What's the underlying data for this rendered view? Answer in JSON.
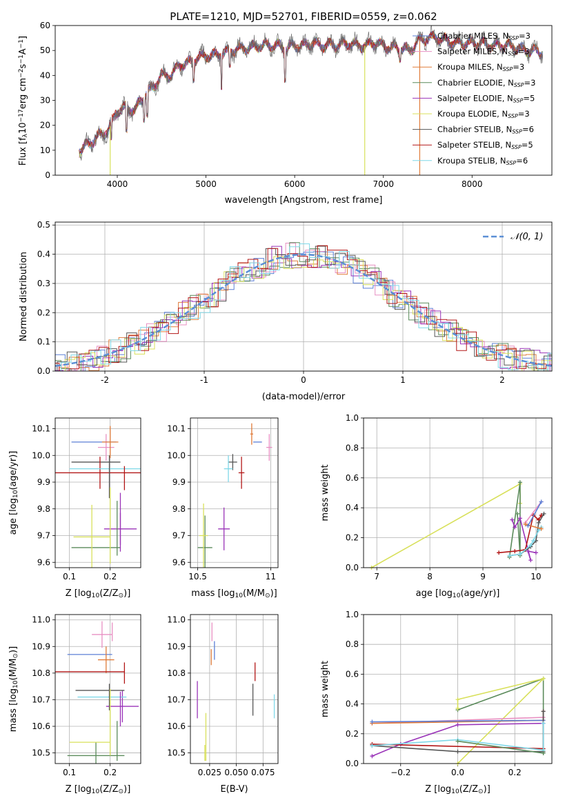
{
  "colors": {
    "chabrier_miles": "#5b7fd6",
    "salpeter_miles": "#e88fc2",
    "kroupa_miles": "#e07b39",
    "chabrier_elodie": "#5a8a5a",
    "salpeter_elodie": "#9a33b8",
    "kroupa_elodie": "#d8e05a",
    "chabrier_stelib": "#555555",
    "salpeter_stelib": "#b21616",
    "kroupa_stelib": "#7fd8e8",
    "grid": "#b0b0b0",
    "spectrum": "#6b6b6b",
    "gaussian": "#5b8fd6"
  },
  "chart_data": [
    {
      "id": "spectrum",
      "type": "line",
      "title": "PLATE=1210, MJD=52701, FIBERID=0559, z=0.062",
      "xlabel": "wavelength [Angstrom, rest frame]",
      "ylabel_parts": [
        "Flux [f",
        "λ",
        "10",
        "−17",
        "erg cm",
        "−2",
        "s",
        "−1",
        "A",
        "−1",
        "]"
      ],
      "xlim": [
        3300,
        8900
      ],
      "ylim": [
        0,
        60
      ],
      "xticks": [
        4000,
        5000,
        6000,
        7000,
        8000
      ],
      "yticks": [
        0,
        10,
        20,
        30,
        40,
        50,
        60
      ],
      "legend": {
        "position": "upper right",
        "entries": [
          {
            "main": "Chabrier MILES, N",
            "sub": "SSP",
            "tail": "=3",
            "color_key": "chabrier_miles"
          },
          {
            "main": "Salpeter MILES, N",
            "sub": "SSP",
            "tail": "=3",
            "color_key": "salpeter_miles"
          },
          {
            "main": "Kroupa MILES, N",
            "sub": "SSP",
            "tail": "=3",
            "color_key": "kroupa_miles"
          },
          {
            "main": "Chabrier ELODIE, N",
            "sub": "SSP",
            "tail": "=3",
            "color_key": "chabrier_elodie"
          },
          {
            "main": "Salpeter ELODIE, N",
            "sub": "SSP",
            "tail": "=5",
            "color_key": "salpeter_elodie"
          },
          {
            "main": "Kroupa ELODIE, N",
            "sub": "SSP",
            "tail": "=3",
            "color_key": "kroupa_elodie"
          },
          {
            "main": "Chabrier STELIB, N",
            "sub": "SSP",
            "tail": "=6",
            "color_key": "chabrier_stelib"
          },
          {
            "main": "Salpeter STELIB, N",
            "sub": "SSP",
            "tail": "=5",
            "color_key": "salpeter_stelib"
          },
          {
            "main": "Kroupa STELIB, N",
            "sub": "SSP",
            "tail": "=6",
            "color_key": "kroupa_stelib"
          }
        ]
      },
      "continuum_x": [
        3570,
        3700,
        3800,
        3900,
        4000,
        4100,
        4200,
        4300,
        4400,
        4500,
        4600,
        4700,
        4800,
        4900,
        5000,
        5100,
        5200,
        5300,
        5400,
        5500,
        5600,
        5700,
        5800,
        5900,
        6000,
        6100,
        6200,
        6300,
        6400,
        6500,
        6600,
        6700,
        6800,
        6900,
        7000,
        7100,
        7200,
        7300,
        7400,
        7500,
        7600,
        7700,
        7800,
        7900,
        8000,
        8100,
        8200,
        8300,
        8400,
        8500,
        8600,
        8700,
        8800
      ],
      "continuum_y": [
        10,
        13,
        16,
        18,
        26,
        27,
        26,
        32,
        35,
        40,
        40,
        44,
        45,
        47,
        48,
        48,
        49,
        50,
        51,
        51,
        52,
        52,
        52,
        51,
        52,
        52,
        53,
        52,
        52,
        52,
        53,
        52,
        52,
        53,
        52,
        51,
        51,
        50,
        54,
        55,
        55,
        54,
        53,
        53,
        53,
        53,
        52,
        52,
        52,
        51,
        50,
        50,
        49
      ],
      "absorption": [
        {
          "x": 3933,
          "y": 15
        },
        {
          "x": 4102,
          "y": 18
        },
        {
          "x": 4300,
          "y": 22
        },
        {
          "x": 4340,
          "y": 24
        },
        {
          "x": 4861,
          "y": 38
        },
        {
          "x": 5175,
          "y": 35
        },
        {
          "x": 5270,
          "y": 44
        },
        {
          "x": 5893,
          "y": 38
        },
        {
          "x": 7190,
          "y": 46
        }
      ],
      "drops": [
        {
          "x": 3920,
          "color_key": "kroupa_elodie"
        },
        {
          "x": 6790,
          "color_key": "kroupa_elodie"
        },
        {
          "x": 7410,
          "color_key": "kroupa_miles"
        }
      ]
    },
    {
      "id": "residuals",
      "type": "histogram",
      "xlabel": "(data-model)/error",
      "ylabel": "Normed distribution",
      "xlim": [
        -2.5,
        2.5
      ],
      "ylim": [
        0,
        0.51
      ],
      "xticks": [
        -2,
        -1,
        0,
        1,
        2
      ],
      "yticks": [
        0.0,
        0.1,
        0.2,
        0.3,
        0.4,
        0.5
      ],
      "legend": {
        "position": "upper right",
        "label": "𝒩(0, 1)"
      },
      "grid": true
    },
    {
      "id": "age_vs_Z",
      "type": "errorbar",
      "xlabel_parts": [
        "Z [log",
        "10",
        "(Z/Z",
        "⊙",
        ")]"
      ],
      "ylabel_parts": [
        "age  [log",
        "10",
        "(age/yr)]"
      ],
      "xlim": [
        0.065,
        0.275
      ],
      "ylim": [
        9.58,
        10.14
      ],
      "xticks": [
        0.1,
        0.2
      ],
      "yticks": [
        9.6,
        9.7,
        9.8,
        9.9,
        10.0,
        10.1
      ],
      "points": [
        {
          "k": "chabrier_miles",
          "x": 0.16,
          "xe": 0.055,
          "y": 10.05,
          "ye": 0.0
        },
        {
          "k": "salpeter_miles",
          "x": 0.19,
          "xe": 0.02,
          "y": 10.03,
          "ye": 0.05
        },
        {
          "k": "kroupa_miles",
          "x": 0.2,
          "xe": 0.02,
          "y": 10.05,
          "ye": 0.06
        },
        {
          "k": "chabrier_elodie",
          "x": 0.165,
          "xe": 0.06,
          "y": 9.655,
          "ye": 0.0
        },
        {
          "k": "salpeter_elodie",
          "x": 0.225,
          "xe": 0.04,
          "y": 9.725,
          "ye": 0.06
        },
        {
          "k": "kroupa_elodie",
          "x": 0.155,
          "xe": 0.045,
          "y": 9.695,
          "ye": 0.12
        },
        {
          "k": "chabrier_stelib",
          "x": 0.165,
          "xe": 0.06,
          "y": 9.975,
          "ye": 0.0
        },
        {
          "k": "salpeter_stelib",
          "x": 0.175,
          "xe": 0.11,
          "y": 9.935,
          "ye": 0.06
        },
        {
          "k": "kroupa_stelib",
          "x": 0.2,
          "xe": 0.1,
          "y": 9.95,
          "ye": 0.0
        }
      ],
      "vlines": [
        {
          "k": "chabrier_stelib",
          "x": 0.198,
          "y1": 9.84,
          "y2": 10.0
        },
        {
          "k": "kroupa_elodie",
          "x": 0.2,
          "y1": 9.595,
          "y2": 9.88
        },
        {
          "k": "chabrier_elodie",
          "x": 0.217,
          "y1": 9.625,
          "y2": 9.83
        },
        {
          "k": "salpeter_elodie",
          "x": 0.225,
          "y1": 9.64,
          "y2": 9.86
        },
        {
          "k": "salpeter_stelib",
          "x": 0.235,
          "y1": 9.87,
          "y2": 9.96
        }
      ]
    },
    {
      "id": "age_vs_mass",
      "type": "errorbar",
      "xlabel_parts": [
        "mass [log",
        "10",
        "(M/M",
        "⊙",
        ")]"
      ],
      "xlim": [
        10.45,
        11.05
      ],
      "ylim": [
        9.58,
        10.14
      ],
      "xticks": [
        10.5,
        11.0
      ],
      "yticks": [
        9.6,
        9.7,
        9.8,
        9.9,
        10.0,
        10.1
      ],
      "points": [
        {
          "k": "chabrier_miles",
          "x": 10.91,
          "xe": 0.03,
          "y": 10.05,
          "ye": 0.0
        },
        {
          "k": "salpeter_miles",
          "x": 10.99,
          "xe": 0.02,
          "y": 10.03,
          "ye": 0.05
        },
        {
          "k": "kroupa_miles",
          "x": 10.87,
          "xe": 0.01,
          "y": 10.08,
          "ye": 0.04
        },
        {
          "k": "chabrier_elodie",
          "x": 10.55,
          "xe": 0.05,
          "y": 9.655,
          "ye": 0.12
        },
        {
          "k": "salpeter_elodie",
          "x": 10.68,
          "xe": 0.04,
          "y": 9.725,
          "ye": 0.08
        },
        {
          "k": "kroupa_elodie",
          "x": 10.54,
          "xe": 0.03,
          "y": 9.7,
          "ye": 0.12
        },
        {
          "k": "chabrier_stelib",
          "x": 10.74,
          "xe": 0.03,
          "y": 9.975,
          "ye": 0.03
        },
        {
          "k": "salpeter_stelib",
          "x": 10.8,
          "xe": 0.02,
          "y": 9.935,
          "ye": 0.06
        },
        {
          "k": "kroupa_stelib",
          "x": 10.71,
          "xe": 0.03,
          "y": 9.95,
          "ye": 0.05
        }
      ]
    },
    {
      "id": "massweight_vs_age",
      "type": "line",
      "xlabel_parts": [
        "age  [log",
        "10",
        "(age/yr)]"
      ],
      "ylabel": "mass weight",
      "xlim": [
        6.75,
        10.3
      ],
      "ylim": [
        0,
        1
      ],
      "xticks": [
        7,
        8,
        9,
        10
      ],
      "yticks": [
        0.0,
        0.2,
        0.4,
        0.6,
        0.8,
        1.0
      ],
      "series": [
        {
          "k": "kroupa_elodie",
          "x": [
            6.9,
            9.7,
            9.7
          ],
          "y": [
            0.0,
            0.56,
            0.43
          ]
        },
        {
          "k": "chabrier_elodie",
          "x": [
            9.5,
            9.7,
            9.7,
            9.65
          ],
          "y": [
            0.07,
            0.57,
            0.08,
            0.36
          ]
        },
        {
          "k": "salpeter_elodie",
          "x": [
            9.55,
            9.6,
            9.7,
            9.9,
            9.85,
            10.0
          ],
          "y": [
            0.32,
            0.27,
            0.33,
            0.05,
            0.11,
            0.1
          ]
        },
        {
          "k": "salpeter_stelib",
          "x": [
            9.3,
            9.6,
            9.8,
            9.95,
            10.05,
            10.1
          ],
          "y": [
            0.1,
            0.11,
            0.12,
            0.35,
            0.32,
            0.35
          ]
        },
        {
          "k": "chabrier_stelib",
          "x": [
            9.5,
            9.7,
            9.9,
            10.0,
            10.05,
            10.15
          ],
          "y": [
            0.08,
            0.09,
            0.14,
            0.18,
            0.3,
            0.36
          ]
        },
        {
          "k": "kroupa_stelib",
          "x": [
            9.5,
            9.7,
            9.9,
            9.95,
            10.05,
            10.1
          ],
          "y": [
            0.08,
            0.09,
            0.15,
            0.18,
            0.25,
            0.27
          ]
        },
        {
          "k": "salpeter_miles",
          "x": [
            9.8,
            10.1
          ],
          "y": [
            0.3,
            0.44
          ]
        },
        {
          "k": "kroupa_miles",
          "x": [
            9.8,
            10.1
          ],
          "y": [
            0.29,
            0.26
          ]
        },
        {
          "k": "chabrier_miles",
          "x": [
            9.85,
            10.1
          ],
          "y": [
            0.28,
            0.44
          ]
        }
      ]
    },
    {
      "id": "mass_vs_Z",
      "type": "errorbar",
      "xlabel_parts": [
        "Z [log",
        "10",
        "(Z/Z",
        "⊙",
        ")]"
      ],
      "ylabel_parts": [
        "mass [log",
        "10",
        "(M/M",
        "⊙",
        ")]"
      ],
      "xlim": [
        0.065,
        0.275
      ],
      "ylim": [
        10.46,
        11.02
      ],
      "xticks": [
        0.1,
        0.2
      ],
      "yticks": [
        10.5,
        10.6,
        10.7,
        10.8,
        10.9,
        11.0
      ],
      "points": [
        {
          "k": "chabrier_miles",
          "x": 0.15,
          "xe": 0.055,
          "y": 10.87,
          "ye": 0.0
        },
        {
          "k": "salpeter_miles",
          "x": 0.18,
          "xe": 0.025,
          "y": 10.945,
          "ye": 0.05
        },
        {
          "k": "kroupa_miles",
          "x": 0.19,
          "xe": 0.02,
          "y": 10.85,
          "ye": 0.05
        },
        {
          "k": "chabrier_elodie",
          "x": 0.165,
          "xe": 0.07,
          "y": 10.49,
          "ye": 0.05
        },
        {
          "k": "salpeter_elodie",
          "x": 0.23,
          "xe": 0.04,
          "y": 10.675,
          "ye": 0.06
        },
        {
          "k": "kroupa_elodie",
          "x": 0.15,
          "xe": 0.05,
          "y": 10.54,
          "ye": 0.0
        },
        {
          "k": "chabrier_stelib",
          "x": 0.175,
          "xe": 0.06,
          "y": 10.735,
          "ye": 0.0
        },
        {
          "k": "salpeter_stelib",
          "x": 0.15,
          "xe": 0.085,
          "y": 10.805,
          "ye": 0.0
        },
        {
          "k": "kroupa_stelib",
          "x": 0.18,
          "xe": 0.06,
          "y": 10.71,
          "ye": 0.0
        }
      ],
      "vlines": [
        {
          "k": "chabrier_stelib",
          "x": 0.198,
          "y1": 10.66,
          "y2": 10.76
        },
        {
          "k": "kroupa_elodie",
          "x": 0.2,
          "y1": 10.49,
          "y2": 10.74
        },
        {
          "k": "chabrier_elodie",
          "x": 0.217,
          "y1": 10.47,
          "y2": 10.62
        },
        {
          "k": "salpeter_elodie",
          "x": 0.225,
          "y1": 10.6,
          "y2": 10.73
        },
        {
          "k": "salpeter_stelib",
          "x": 0.235,
          "y1": 10.76,
          "y2": 10.84
        },
        {
          "k": "salpeter_miles",
          "x": 0.205,
          "y1": 10.92,
          "y2": 10.99
        }
      ]
    },
    {
      "id": "mass_vs_ebv",
      "type": "errorbar",
      "xlabel": "E(B-V)",
      "xlim": [
        0.007,
        0.089
      ],
      "ylim": [
        10.46,
        11.02
      ],
      "xticks": [
        0.025,
        0.05,
        0.075
      ],
      "xticklabels": [
        "0.025",
        "0.050",
        "0.075"
      ],
      "yticks": [
        10.5,
        10.6,
        10.7,
        10.8,
        10.9,
        11.0
      ],
      "vlines": [
        {
          "k": "salpeter_elodie",
          "x": 0.0135,
          "y1": 10.63,
          "y2": 10.77
        },
        {
          "k": "kroupa_elodie",
          "x": 0.0215,
          "y1": 10.47,
          "y2": 10.65
        },
        {
          "k": "kroupa_elodie",
          "x": 0.0205,
          "y1": 10.47,
          "y2": 10.53
        },
        {
          "k": "kroupa_miles",
          "x": 0.0265,
          "y1": 10.83,
          "y2": 10.89
        },
        {
          "k": "salpeter_miles",
          "x": 0.0272,
          "y1": 10.92,
          "y2": 10.99
        },
        {
          "k": "chabrier_miles",
          "x": 0.0295,
          "y1": 10.85,
          "y2": 10.92
        },
        {
          "k": "chabrier_stelib",
          "x": 0.0655,
          "y1": 10.64,
          "y2": 10.76
        },
        {
          "k": "salpeter_stelib",
          "x": 0.0675,
          "y1": 10.77,
          "y2": 10.84
        },
        {
          "k": "kroupa_stelib",
          "x": 0.0855,
          "y1": 10.63,
          "y2": 10.72
        }
      ]
    },
    {
      "id": "massweight_vs_Z",
      "type": "line",
      "xlabel_parts": [
        "Z [log",
        "10",
        "(Z/Z",
        "⊙",
        ")]"
      ],
      "ylabel": "mass weight",
      "xlim": [
        -0.33,
        0.33
      ],
      "ylim": [
        0,
        1
      ],
      "xticks": [
        -0.2,
        0.0,
        0.2
      ],
      "xticklabels": [
        "−0.2",
        "0.0",
        "0.2"
      ],
      "yticks": [
        0.0,
        0.2,
        0.4,
        0.6,
        0.8,
        1.0
      ],
      "series": [
        {
          "k": "chabrier_elodie",
          "x": [
            0.0,
            0.3,
            0.3
          ],
          "y": [
            0.36,
            0.57,
            0.07
          ]
        },
        {
          "k": "kroupa_elodie",
          "x": [
            0.0,
            0.3,
            0.0,
            0.0
          ],
          "y": [
            0.0,
            0.57,
            0.43,
            0.37
          ]
        },
        {
          "k": "salpeter_elodie",
          "x": [
            -0.3,
            -0.2,
            0.0,
            0.3
          ],
          "y": [
            0.05,
            0.13,
            0.26,
            0.27
          ]
        },
        {
          "k": "salpeter_miles",
          "x": [
            -0.3,
            0.3
          ],
          "y": [
            0.27,
            0.31
          ]
        },
        {
          "k": "kroupa_miles",
          "x": [
            -0.3,
            0.3
          ],
          "y": [
            0.27,
            0.29
          ]
        },
        {
          "k": "chabrier_miles",
          "x": [
            -0.3,
            0.3
          ],
          "y": [
            0.28,
            0.29
          ]
        },
        {
          "k": "salpeter_stelib",
          "x": [
            -0.3,
            0.3,
            0.3
          ],
          "y": [
            0.13,
            0.1,
            0.35
          ]
        },
        {
          "k": "chabrier_stelib",
          "x": [
            -0.3,
            0.0,
            0.3,
            0.3
          ],
          "y": [
            0.12,
            0.08,
            0.08,
            0.35
          ]
        },
        {
          "k": "kroupa_stelib",
          "x": [
            -0.3,
            0.0,
            0.3,
            0.3
          ],
          "y": [
            0.12,
            0.16,
            0.09,
            0.27
          ]
        },
        {
          "k": "chabrier_elodie",
          "x": [
            0.0,
            0.3
          ],
          "y": [
            0.15,
            0.07
          ]
        }
      ]
    }
  ]
}
